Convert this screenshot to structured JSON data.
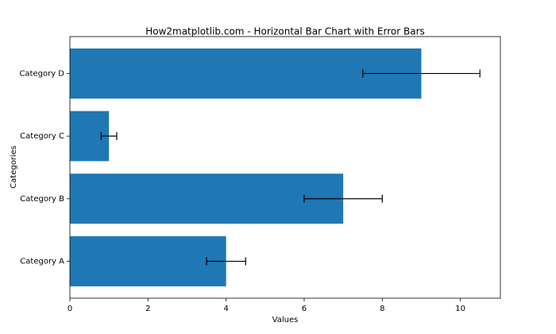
{
  "chart_data": {
    "type": "barh",
    "title": "How2matplotlib.com - Horizontal Bar Chart with Error Bars",
    "xlabel": "Values",
    "ylabel": "Categories",
    "categories": [
      "Category A",
      "Category B",
      "Category C",
      "Category D"
    ],
    "values": [
      4,
      7,
      1,
      9
    ],
    "errors": [
      0.5,
      1,
      0.2,
      1.5
    ],
    "color": "#1f77b4",
    "error_color": "#000000",
    "xlim": [
      0,
      11.025
    ],
    "xticks": [
      0,
      2,
      4,
      6,
      8,
      10
    ]
  }
}
